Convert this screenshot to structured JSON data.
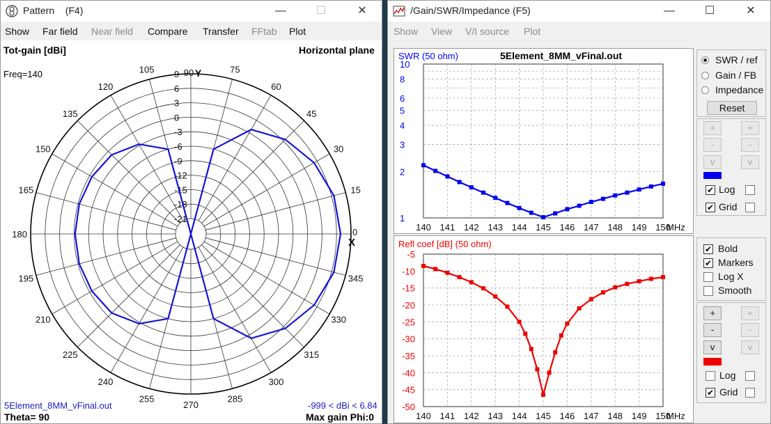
{
  "pattern_window": {
    "title": "Pattern    (F4)",
    "title_icon": "pattern-app-icon",
    "controls": {
      "minimize": "—",
      "maximize": "☐",
      "close": "✕"
    },
    "menu": [
      "Show",
      "Far field",
      "Near field",
      "Compare",
      "Transfer",
      "FFtab",
      "Plot"
    ],
    "menu_disabled": [
      false,
      false,
      true,
      false,
      false,
      true,
      false
    ],
    "header_left": "Tot-gain [dBi]",
    "header_right": "Horizontal plane",
    "freq": "Freq=140",
    "footer_file": "5Element_8MM_vFinal.out",
    "footer_range": "-999 < dBi < 6.84",
    "footer_theta": "Theta= 90",
    "footer_maxgain": "Max gain Phi:0",
    "axis_y": "Y",
    "axis_x": "X",
    "angle_labels": [
      "0",
      "15",
      "30",
      "45",
      "60",
      "75",
      "90",
      "105",
      "120",
      "135",
      "150",
      "165",
      "180",
      "195",
      "210",
      "225",
      "240",
      "255",
      "270",
      "285",
      "300",
      "315",
      "330",
      "345"
    ],
    "ring_labels": [
      "9",
      "6",
      "3",
      "0",
      "-3",
      "-6",
      "-9",
      "-12",
      "-15",
      "-18",
      "-21"
    ],
    "pattern_color": "#1414d4",
    "chart_data": {
      "type": "polar",
      "angles_deg": [
        0,
        15,
        30,
        45,
        60,
        75,
        90,
        105,
        120,
        135,
        150,
        165,
        180,
        195,
        210,
        225,
        240,
        255,
        270,
        285,
        300,
        315,
        330,
        345
      ],
      "gain_dbi": [
        6.84,
        6.5,
        5.3,
        3.5,
        0.8,
        -6,
        -999,
        -6,
        -2.7,
        -1.0,
        -0.5,
        -0.25,
        -0.2,
        -0.25,
        -0.5,
        -1.0,
        -2.7,
        -6,
        -999,
        -6,
        0.8,
        3.5,
        5.3,
        6.5
      ],
      "ring_min": -21,
      "ring_max": 9,
      "ring_step": 3,
      "plane": "Horizontal plane"
    }
  },
  "swr_window": {
    "title": "/Gain/SWR/Impedance (F5)",
    "title_icon": "graph-app-icon",
    "controls": {
      "minimize": "—",
      "maximize": "☐",
      "close": "✕"
    },
    "menu": [
      "Show",
      "View",
      "V/I source",
      "Plot"
    ],
    "file": "5Element_8MM_vFinal.out",
    "swr_label": "SWR (50 ohm)",
    "refl_label": "Refl coef [dB] (50 ohm)",
    "x_unit": "MHz",
    "x_ticks": [
      "140",
      "141",
      "142",
      "143",
      "144",
      "145",
      "146",
      "147",
      "148",
      "149",
      "150"
    ],
    "swr_ticks": [
      "10",
      "8",
      "6",
      "5",
      "4",
      "3",
      "2",
      "1"
    ],
    "refl_ticks": [
      "-5",
      "-10",
      "-15",
      "-20",
      "-25",
      "-30",
      "-35",
      "-40",
      "-45",
      "-50"
    ],
    "swr_color": "#0000ee",
    "refl_color": "#ee0000",
    "radios": [
      {
        "label": "SWR / ref",
        "checked": true
      },
      {
        "label": "Gain / FB",
        "checked": false
      },
      {
        "label": "Impedance",
        "checked": false
      }
    ],
    "reset": "Reset",
    "scale_buttons": {
      "plus": "+",
      "minus": "-",
      "v": "v"
    },
    "top_checks": {
      "log": "Log",
      "grid": "Grid",
      "log_checked": true,
      "grid_checked": true
    },
    "options": [
      {
        "label": "Bold",
        "checked": true
      },
      {
        "label": "Markers",
        "checked": true
      },
      {
        "label": "Log X",
        "checked": false
      },
      {
        "label": "Smooth",
        "checked": false
      }
    ],
    "bottom_checks": {
      "log": "Log",
      "grid": "Grid",
      "log_checked": false,
      "grid_checked": true
    },
    "chart_data": [
      {
        "type": "line",
        "name": "SWR (50 ohm)",
        "x_range": [
          140,
          150
        ],
        "y_scale": "log",
        "ylim": [
          1,
          10
        ],
        "x": [
          140,
          140.5,
          141,
          141.5,
          142,
          142.5,
          143,
          143.5,
          144,
          144.5,
          145,
          145.5,
          146,
          146.5,
          147,
          147.5,
          148,
          148.5,
          149,
          149.5,
          150
        ],
        "y": [
          2.2,
          2.02,
          1.86,
          1.71,
          1.58,
          1.46,
          1.35,
          1.25,
          1.16,
          1.08,
          1.01,
          1.07,
          1.14,
          1.2,
          1.27,
          1.33,
          1.4,
          1.46,
          1.53,
          1.6,
          1.67
        ],
        "grid": true
      },
      {
        "type": "line",
        "name": "Refl coef [dB] (50 ohm)",
        "x_range": [
          140,
          150
        ],
        "ylim": [
          -50,
          -5
        ],
        "x": [
          140,
          140.5,
          141,
          141.5,
          142,
          142.5,
          143,
          143.5,
          144,
          144.25,
          144.5,
          144.75,
          145,
          145.25,
          145.5,
          145.75,
          146,
          146.5,
          147,
          147.5,
          148,
          148.5,
          149,
          149.5,
          150
        ],
        "y": [
          -8.5,
          -9.4,
          -10.5,
          -11.8,
          -13.3,
          -15.1,
          -17.5,
          -20.5,
          -25,
          -28.5,
          -33,
          -39,
          -46.5,
          -40,
          -34,
          -29,
          -25.5,
          -21,
          -18.3,
          -16.3,
          -14.8,
          -13.8,
          -13,
          -12.3,
          -11.8
        ],
        "grid": true
      }
    ]
  }
}
